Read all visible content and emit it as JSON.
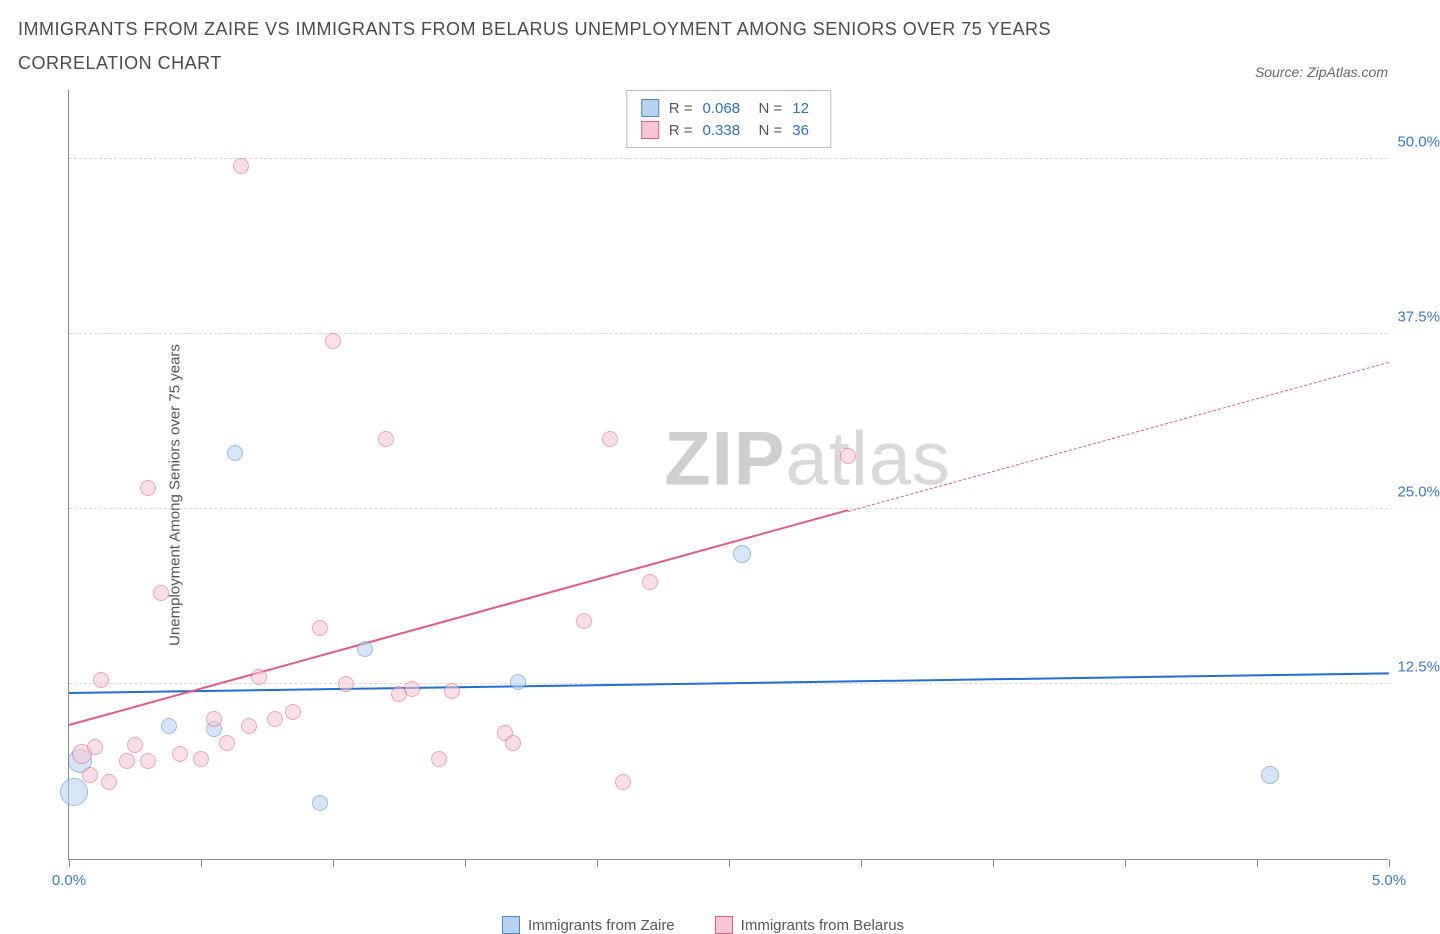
{
  "title": "IMMIGRANTS FROM ZAIRE VS IMMIGRANTS FROM BELARUS UNEMPLOYMENT AMONG SENIORS OVER 75 YEARS CORRELATION CHART",
  "source": "Source: ZipAtlas.com",
  "watermark": {
    "bold": "ZIP",
    "light": "atlas"
  },
  "chart": {
    "type": "scatter",
    "ylabel": "Unemployment Among Seniors over 75 years",
    "xlim": [
      0,
      5.0
    ],
    "ylim": [
      0,
      55
    ],
    "xticks": [
      0.0,
      0.5,
      1.0,
      1.5,
      2.0,
      2.5,
      3.0,
      3.5,
      4.0,
      4.5,
      5.0
    ],
    "xticks_labeled": {
      "0": "0.0%",
      "5": "5.0%"
    },
    "yticks": [
      12.5,
      25.0,
      37.5,
      50.0
    ],
    "ytick_labels": [
      "12.5%",
      "25.0%",
      "37.5%",
      "50.0%"
    ],
    "background_color": "#ffffff",
    "grid_color": "#d8d8d8",
    "axis_color": "#888888",
    "label_color": "#3b78c4",
    "series": [
      {
        "name": "Immigrants from Zaire",
        "fill": "#b7d2ef",
        "stroke": "#4a86d1",
        "fill_opacity": 0.55,
        "trend_color": "#1f6fd0",
        "stats": {
          "R": "0.068",
          "N": "12"
        },
        "trend": {
          "x1": 0.0,
          "y1": 11.8,
          "x2": 5.0,
          "y2": 13.2,
          "dash_after_x": null
        },
        "points": [
          {
            "x": 0.02,
            "y": 4.8,
            "r": 14
          },
          {
            "x": 0.04,
            "y": 7.0,
            "r": 12
          },
          {
            "x": 0.38,
            "y": 9.5,
            "r": 8
          },
          {
            "x": 0.55,
            "y": 9.3,
            "r": 8
          },
          {
            "x": 0.63,
            "y": 29.0,
            "r": 8
          },
          {
            "x": 0.95,
            "y": 4.0,
            "r": 8
          },
          {
            "x": 1.12,
            "y": 15.0,
            "r": 8
          },
          {
            "x": 1.7,
            "y": 12.7,
            "r": 8
          },
          {
            "x": 2.55,
            "y": 21.8,
            "r": 9
          },
          {
            "x": 4.55,
            "y": 6.0,
            "r": 9
          }
        ]
      },
      {
        "name": "Immigrants from Belarus",
        "fill": "#f6c6d4",
        "stroke": "#e05b86",
        "fill_opacity": 0.55,
        "trend_color": "#e05b86",
        "stats": {
          "R": "0.338",
          "N": "36"
        },
        "trend": {
          "x1": 0.0,
          "y1": 9.5,
          "x2": 5.0,
          "y2": 35.5,
          "dash_after_x": 2.95
        },
        "points": [
          {
            "x": 0.05,
            "y": 7.5,
            "r": 10
          },
          {
            "x": 0.08,
            "y": 6.0,
            "r": 8
          },
          {
            "x": 0.1,
            "y": 8.0,
            "r": 8
          },
          {
            "x": 0.12,
            "y": 12.8,
            "r": 8
          },
          {
            "x": 0.15,
            "y": 5.5,
            "r": 8
          },
          {
            "x": 0.22,
            "y": 7.0,
            "r": 8
          },
          {
            "x": 0.25,
            "y": 8.2,
            "r": 8
          },
          {
            "x": 0.3,
            "y": 7.0,
            "r": 8
          },
          {
            "x": 0.3,
            "y": 26.5,
            "r": 8
          },
          {
            "x": 0.35,
            "y": 19.0,
            "r": 8
          },
          {
            "x": 0.42,
            "y": 7.5,
            "r": 8
          },
          {
            "x": 0.5,
            "y": 7.2,
            "r": 8
          },
          {
            "x": 0.55,
            "y": 10.0,
            "r": 8
          },
          {
            "x": 0.6,
            "y": 8.3,
            "r": 8
          },
          {
            "x": 0.65,
            "y": 49.5,
            "r": 8
          },
          {
            "x": 0.68,
            "y": 9.5,
            "r": 8
          },
          {
            "x": 0.72,
            "y": 13.0,
            "r": 8
          },
          {
            "x": 0.78,
            "y": 10.0,
            "r": 8
          },
          {
            "x": 0.85,
            "y": 10.5,
            "r": 8
          },
          {
            "x": 0.95,
            "y": 16.5,
            "r": 8
          },
          {
            "x": 1.0,
            "y": 37.0,
            "r": 8
          },
          {
            "x": 1.05,
            "y": 12.5,
            "r": 8
          },
          {
            "x": 1.2,
            "y": 30.0,
            "r": 8
          },
          {
            "x": 1.25,
            "y": 11.8,
            "r": 8
          },
          {
            "x": 1.3,
            "y": 12.2,
            "r": 8
          },
          {
            "x": 1.4,
            "y": 7.2,
            "r": 8
          },
          {
            "x": 1.45,
            "y": 12.0,
            "r": 8
          },
          {
            "x": 1.65,
            "y": 9.0,
            "r": 8
          },
          {
            "x": 1.68,
            "y": 8.3,
            "r": 8
          },
          {
            "x": 1.95,
            "y": 17.0,
            "r": 8
          },
          {
            "x": 2.05,
            "y": 30.0,
            "r": 8
          },
          {
            "x": 2.1,
            "y": 5.5,
            "r": 8
          },
          {
            "x": 2.2,
            "y": 19.8,
            "r": 8
          },
          {
            "x": 2.95,
            "y": 28.8,
            "r": 8
          }
        ]
      }
    ],
    "legend": {
      "items": [
        "Immigrants from Zaire",
        "Immigrants from Belarus"
      ]
    },
    "stats_box_labels": {
      "R": "R =",
      "N": "N ="
    }
  }
}
